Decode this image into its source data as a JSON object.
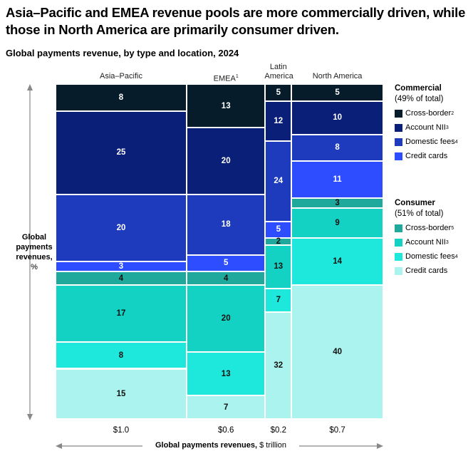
{
  "title": "Asia–Pacific and EMEA revenue pools are more commercially driven, while those in North America are primarily consumer driven.",
  "subtitle": "Global payments revenue, by type and location, 2024",
  "y_axis": {
    "label": "Global payments revenues,",
    "unit": "%"
  },
  "x_axis": {
    "label": "Global payments revenues,",
    "unit": "$ trillion"
  },
  "legend": {
    "commercial": {
      "title": "Commercial",
      "note": "(49% of total)",
      "items": [
        {
          "label": "Cross-border",
          "sup": "2",
          "color": "#061c2b"
        },
        {
          "label": "Account NII",
          "sup": "3",
          "color": "#0a1f78"
        },
        {
          "label": "Domestic fees",
          "sup": "4",
          "color": "#1e3bbd"
        },
        {
          "label": "Credit cards",
          "sup": "",
          "color": "#2d4dff"
        }
      ]
    },
    "consumer": {
      "title": "Consumer",
      "note": "(51% of total)",
      "items": [
        {
          "label": "Cross-border",
          "sup": "5",
          "color": "#1fa99c"
        },
        {
          "label": "Account NII",
          "sup": "3",
          "color": "#13d2c4"
        },
        {
          "label": "Domestic fees",
          "sup": "4",
          "color": "#1ee8dc"
        },
        {
          "label": "Credit cards",
          "sup": "",
          "color": "#aaf3ef"
        }
      ]
    }
  },
  "chart_data": {
    "type": "marimekko",
    "title": "Global payments revenue, by type and location, 2024",
    "xlabel": "Global payments revenues, $ trillion",
    "ylabel": "Global payments revenues, %",
    "segments": [
      "Commercial cross-border",
      "Commercial account NII",
      "Commercial domestic fees",
      "Commercial credit cards",
      "Consumer cross-border",
      "Consumer account NII",
      "Consumer domestic fees",
      "Consumer credit cards"
    ],
    "columns": [
      {
        "name": "Asia–Pacific",
        "sup": "",
        "width": 1.0,
        "width_label": "$1.0",
        "values": [
          8,
          25,
          20,
          3,
          4,
          17,
          8,
          15
        ]
      },
      {
        "name": "EMEA",
        "sup": "1",
        "width": 0.6,
        "width_label": "$0.6",
        "values": [
          13,
          20,
          18,
          5,
          4,
          20,
          13,
          7
        ]
      },
      {
        "name": "Latin America",
        "sup": "",
        "width": 0.2,
        "width_label": "$0.2",
        "values": [
          5,
          12,
          24,
          5,
          2,
          13,
          7,
          32
        ]
      },
      {
        "name": "North America",
        "sup": "",
        "width": 0.7,
        "width_label": "$0.7",
        "values": [
          5,
          10,
          8,
          11,
          3,
          9,
          14,
          40
        ]
      }
    ]
  }
}
